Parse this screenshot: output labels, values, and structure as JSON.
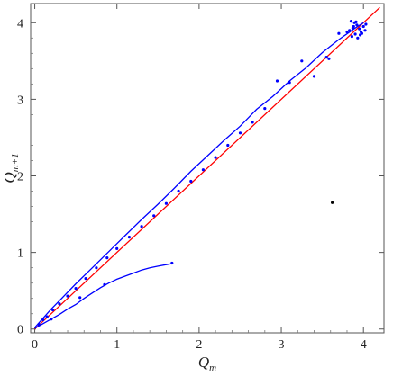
{
  "chart_data": {
    "type": "scatter",
    "title": "",
    "xlabel": "Q",
    "xlabel_sub": "m",
    "ylabel": "Q",
    "ylabel_sub": "m+1",
    "xlim": [
      -0.05,
      4.25
    ],
    "ylim": [
      -0.05,
      4.25
    ],
    "xticks": [
      0,
      1,
      2,
      3,
      4
    ],
    "yticks": [
      0,
      1,
      2,
      3,
      4
    ],
    "xtick_labels": [
      "0",
      "1",
      "2",
      "3",
      "4"
    ],
    "ytick_labels": [
      "0",
      "1",
      "2",
      "3",
      "4"
    ],
    "grid": false,
    "series": [
      {
        "kind": "line",
        "color": "#ff0000",
        "x": [
          0,
          4.2
        ],
        "y": [
          0,
          4.2
        ]
      },
      {
        "kind": "line",
        "color": "#0000ff",
        "x": [
          0,
          0.1,
          0.2,
          0.3,
          0.5,
          0.7,
          0.9,
          1.1,
          1.3,
          1.5,
          1.7,
          1.9,
          2.1,
          2.3,
          2.5,
          2.7,
          2.9,
          3.1,
          3.3,
          3.5,
          3.7,
          3.9,
          4.0
        ],
        "y": [
          0.02,
          0.14,
          0.26,
          0.37,
          0.59,
          0.8,
          1.01,
          1.22,
          1.43,
          1.63,
          1.84,
          2.06,
          2.26,
          2.46,
          2.65,
          2.87,
          3.04,
          3.24,
          3.41,
          3.61,
          3.78,
          3.93,
          4.0
        ]
      },
      {
        "kind": "line",
        "color": "#0000ff",
        "x": [
          0,
          0.1,
          0.2,
          0.3,
          0.4,
          0.5,
          0.6,
          0.7,
          0.8,
          0.9,
          1.0,
          1.1,
          1.2,
          1.3,
          1.4,
          1.5,
          1.6,
          1.65
        ],
        "y": [
          0.01,
          0.07,
          0.13,
          0.19,
          0.26,
          0.32,
          0.4,
          0.47,
          0.54,
          0.6,
          0.65,
          0.69,
          0.73,
          0.77,
          0.8,
          0.82,
          0.84,
          0.85
        ]
      },
      {
        "kind": "points",
        "color": "#0000ff",
        "x": [
          0.05,
          0.1,
          0.15,
          0.22,
          0.3,
          0.4,
          0.5,
          0.62,
          0.75,
          0.88,
          1.0,
          1.15,
          1.3,
          1.45,
          1.6,
          1.75,
          1.9,
          2.05,
          2.2,
          2.35,
          2.5,
          2.65,
          2.8,
          2.95,
          3.1,
          3.25,
          3.4,
          3.55,
          3.7,
          0.2,
          0.55,
          0.85,
          1.67,
          3.58,
          3.8,
          3.83,
          3.86,
          3.88,
          3.9,
          3.92,
          3.95,
          3.97,
          4.0,
          4.02,
          3.85,
          3.89,
          3.93,
          3.98,
          4.03,
          3.87,
          3.91,
          3.96
        ],
        "y": [
          0.06,
          0.12,
          0.16,
          0.25,
          0.33,
          0.43,
          0.53,
          0.66,
          0.8,
          0.93,
          1.05,
          1.2,
          1.34,
          1.48,
          1.64,
          1.8,
          1.93,
          2.08,
          2.24,
          2.4,
          2.56,
          2.7,
          2.88,
          3.24,
          3.22,
          3.5,
          3.3,
          3.55,
          3.86,
          0.13,
          0.41,
          0.58,
          0.86,
          3.53,
          3.88,
          3.9,
          3.82,
          3.95,
          3.85,
          3.97,
          3.92,
          3.88,
          3.95,
          3.9,
          4.02,
          4.0,
          3.8,
          3.86,
          3.98,
          3.93,
          4.01,
          3.84
        ]
      },
      {
        "kind": "points",
        "color": "#000000",
        "x": [
          3.62
        ],
        "y": [
          1.65
        ]
      }
    ]
  }
}
